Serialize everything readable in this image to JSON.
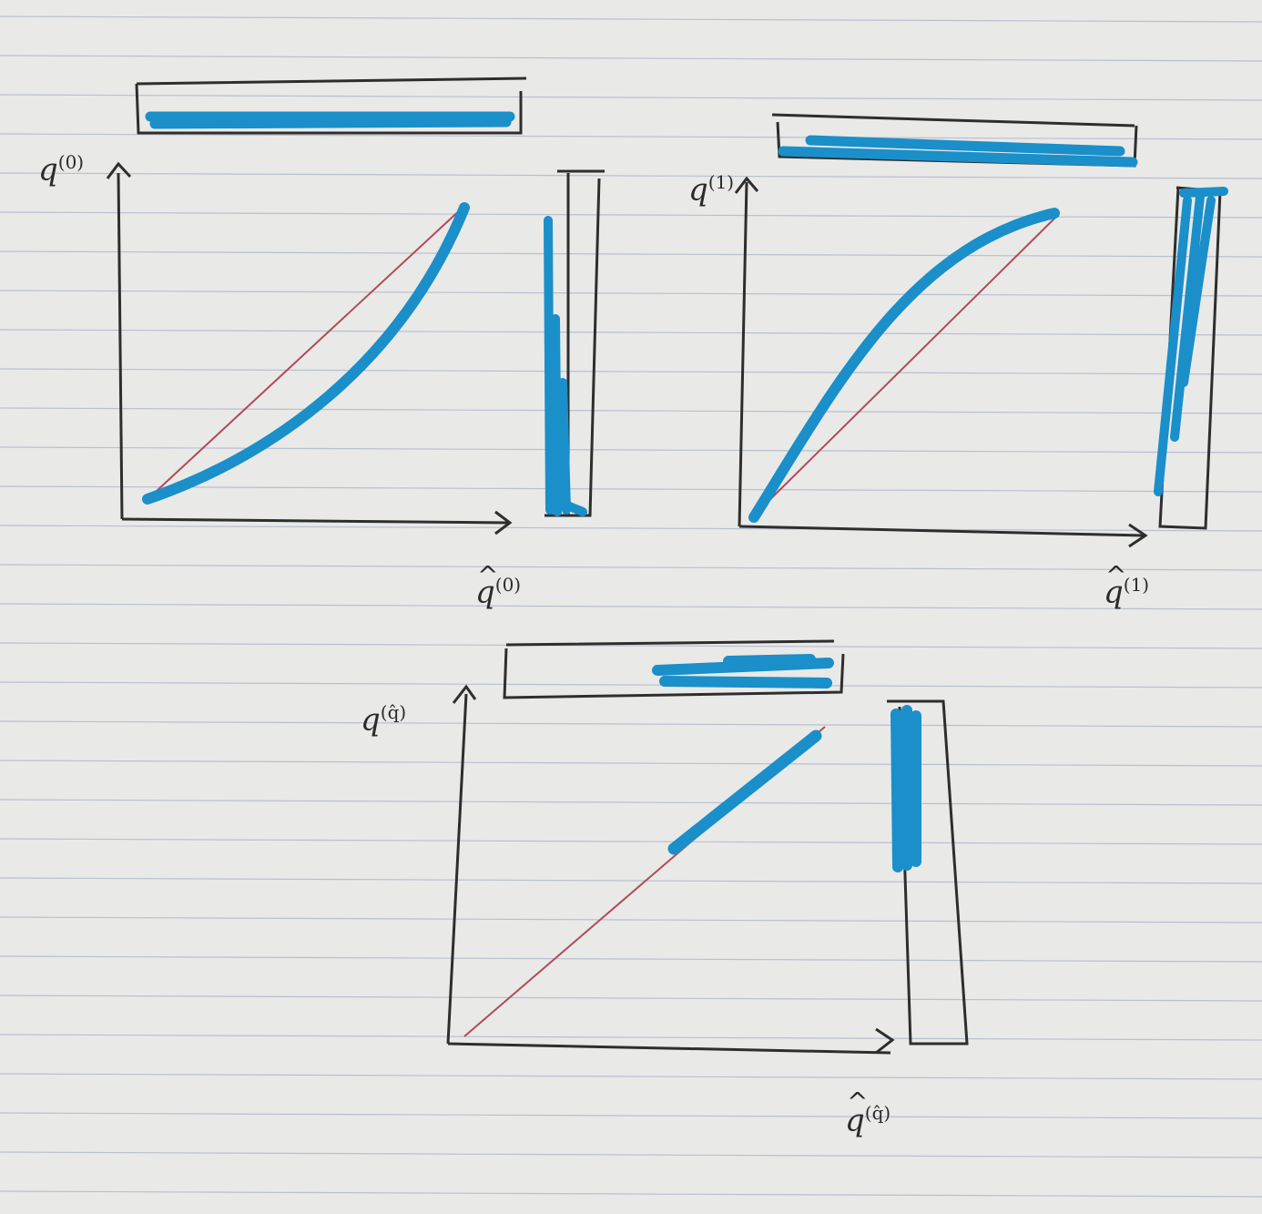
{
  "colors": {
    "paper": "#e9e9e7",
    "rule_line": "#b9bfd0",
    "ink": "#2e2e2e",
    "marker_blue": "#1a8fc9",
    "diagonal_red": "#b04a5a"
  },
  "panels": [
    {
      "y_label": "q",
      "y_sup": "(0)",
      "x_label": "q",
      "x_sup": "(0)",
      "curve_shape": "convex-below-diagonal",
      "top_hist": "uniform-full",
      "right_hist": "concentrated-low"
    },
    {
      "y_label": "q",
      "y_sup": "(1)",
      "x_label": "q",
      "x_sup": "(1)",
      "curve_shape": "concave-above-diagonal",
      "top_hist": "uniform-full",
      "right_hist": "concentrated-high"
    },
    {
      "y_label": "q",
      "y_sup": "(q̂)",
      "x_label": "q",
      "x_sup": "(q̂)",
      "curve_shape": "on-diagonal-upper",
      "top_hist": "upper-half",
      "right_hist": "upper-half"
    }
  ]
}
